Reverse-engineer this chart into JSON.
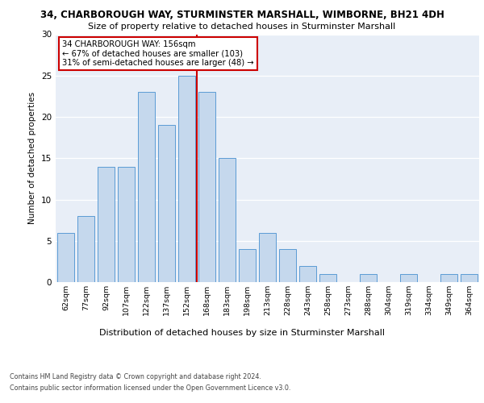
{
  "title": "34, CHARBOROUGH WAY, STURMINSTER MARSHALL, WIMBORNE, BH21 4DH",
  "subtitle": "Size of property relative to detached houses in Sturminster Marshall",
  "xlabel": "Distribution of detached houses by size in Sturminster Marshall",
  "ylabel": "Number of detached properties",
  "bar_labels": [
    "62sqm",
    "77sqm",
    "92sqm",
    "107sqm",
    "122sqm",
    "137sqm",
    "152sqm",
    "168sqm",
    "183sqm",
    "198sqm",
    "213sqm",
    "228sqm",
    "243sqm",
    "258sqm",
    "273sqm",
    "288sqm",
    "304sqm",
    "319sqm",
    "334sqm",
    "349sqm",
    "364sqm"
  ],
  "bar_values": [
    6,
    8,
    14,
    14,
    23,
    19,
    25,
    23,
    15,
    4,
    6,
    4,
    2,
    1,
    0,
    1,
    0,
    1,
    0,
    1,
    1
  ],
  "bar_color": "#c5d8ed",
  "bar_edgecolor": "#5b9bd5",
  "reference_line_label": "34 CHARBOROUGH WAY: 156sqm",
  "annotation_line1": "← 67% of detached houses are smaller (103)",
  "annotation_line2": "31% of semi-detached houses are larger (48) →",
  "annotation_box_edgecolor": "#cc0000",
  "vline_color": "#cc0000",
  "ylim": [
    0,
    30
  ],
  "yticks": [
    0,
    5,
    10,
    15,
    20,
    25,
    30
  ],
  "bg_color": "#e8eef7",
  "footer1": "Contains HM Land Registry data © Crown copyright and database right 2024.",
  "footer2": "Contains public sector information licensed under the Open Government Licence v3.0."
}
